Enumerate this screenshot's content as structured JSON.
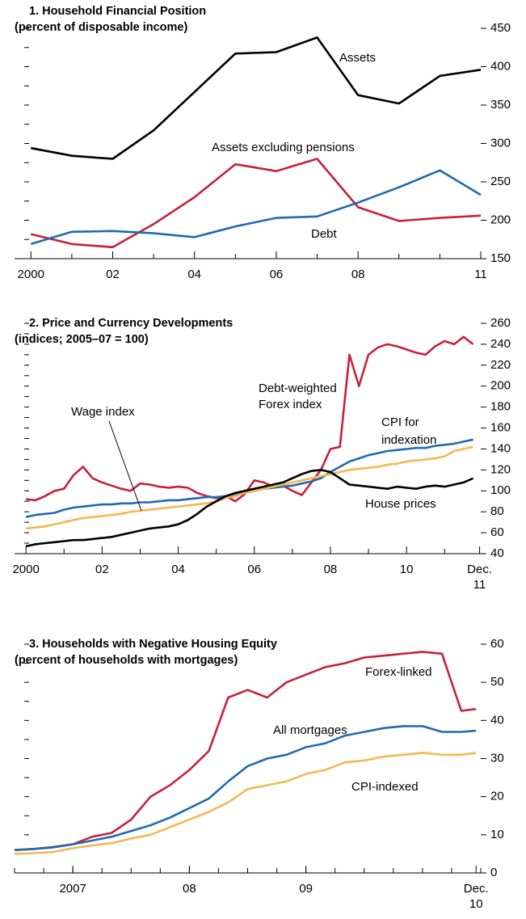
{
  "chart_data": [
    {
      "type": "line",
      "title": "1. Household Financial Position",
      "subtitle": "(percent of disposable income)",
      "x": [
        2000,
        2001,
        2002,
        2003,
        2004,
        2005,
        2006,
        2007,
        2008,
        2009,
        2010,
        2011
      ],
      "series": [
        {
          "name": "Assets",
          "color": "#000000",
          "values": [
            294,
            284,
            280,
            317,
            367,
            417,
            419,
            438,
            363,
            352,
            388,
            396
          ]
        },
        {
          "name": "Assets excluding pensions",
          "color": "#c8203c",
          "values": [
            182,
            169,
            165,
            195,
            230,
            273,
            264,
            280,
            217,
            199,
            203,
            206
          ]
        },
        {
          "name": "Debt",
          "color": "#1f6bb0",
          "values": [
            169,
            185,
            186,
            183,
            178,
            192,
            203,
            205,
            223,
            243,
            265,
            233
          ]
        }
      ],
      "xlim": [
        1999.6,
        2011
      ],
      "xticks": [
        {
          "value": 2000,
          "label": "2000"
        },
        {
          "value": 2002,
          "label": "02"
        },
        {
          "value": 2004,
          "label": "04"
        },
        {
          "value": 2006,
          "label": "06"
        },
        {
          "value": 2008,
          "label": "08"
        },
        {
          "value": 2011,
          "label": "11"
        }
      ],
      "xminor": [
        2001,
        2003,
        2005,
        2007,
        2009,
        2010
      ],
      "ylim": [
        150,
        450
      ],
      "yticks": [
        150,
        200,
        250,
        300,
        350,
        400,
        450
      ],
      "yminor": [
        175,
        225,
        275,
        325,
        375,
        425
      ]
    },
    {
      "type": "line",
      "title": "2. Price and Currency Developments",
      "subtitle": "(indices; 2005–07 = 100)",
      "x": [
        2000,
        2000.25,
        2000.5,
        2000.75,
        2001,
        2001.25,
        2001.5,
        2001.75,
        2002,
        2002.25,
        2002.5,
        2002.75,
        2003,
        2003.25,
        2003.5,
        2003.75,
        2004,
        2004.25,
        2004.5,
        2004.75,
        2005,
        2005.25,
        2005.5,
        2005.75,
        2006,
        2006.25,
        2006.5,
        2006.75,
        2007,
        2007.25,
        2007.5,
        2007.75,
        2008,
        2008.25,
        2008.5,
        2008.75,
        2009,
        2009.25,
        2009.5,
        2009.75,
        2010,
        2010.25,
        2010.5,
        2010.75,
        2011,
        2011.25,
        2011.5,
        2011.75
      ],
      "series": [
        {
          "name": "Debt-weighted Forex index",
          "color": "#c8203c",
          "values": [
            92,
            91,
            95,
            100,
            102,
            115,
            123,
            112,
            108,
            105,
            102,
            100,
            107,
            106,
            104,
            103,
            104,
            103,
            98,
            95,
            93,
            95,
            90,
            97,
            110,
            108,
            104,
            105,
            100,
            96,
            108,
            120,
            140,
            142,
            230,
            200,
            230,
            237,
            240,
            238,
            235,
            232,
            230,
            238,
            243,
            240,
            247,
            240
          ]
        },
        {
          "name": "CPI for indexation",
          "color": "#1f6bb0",
          "values": [
            75,
            77,
            78,
            79,
            82,
            84,
            85,
            86,
            87,
            87,
            88,
            88,
            89,
            89,
            90,
            91,
            91,
            92,
            93,
            94,
            94,
            95,
            96,
            98,
            100,
            102,
            103,
            104,
            105,
            107,
            109,
            112,
            118,
            123,
            128,
            131,
            134,
            136,
            138,
            139,
            140,
            141,
            141,
            143,
            144,
            145,
            147,
            149
          ]
        },
        {
          "name": "Wage index",
          "color": "#f5b850",
          "values": [
            64,
            65,
            66,
            68,
            70,
            72,
            74,
            75,
            76,
            77,
            78,
            80,
            81,
            82,
            83,
            84,
            85,
            86,
            87,
            88,
            90,
            93,
            95,
            98,
            100,
            102,
            104,
            106,
            108,
            110,
            112,
            114,
            116,
            118,
            120,
            121,
            122,
            123,
            125,
            126,
            128,
            129,
            130,
            131,
            133,
            138,
            140,
            142
          ]
        },
        {
          "name": "House prices",
          "color": "#000000",
          "values": [
            47,
            49,
            50,
            51,
            52,
            53,
            53,
            54,
            55,
            56,
            58,
            60,
            62,
            64,
            65,
            66,
            68,
            72,
            78,
            85,
            90,
            95,
            98,
            100,
            102,
            104,
            106,
            108,
            112,
            116,
            119,
            120,
            118,
            112,
            106,
            105,
            104,
            103,
            102,
            104,
            103,
            102,
            104,
            105,
            104,
            106,
            108,
            112
          ]
        }
      ],
      "annotations": [
        "Wage index",
        "Debt-weighted",
        "Forex index",
        "CPI for",
        "indexation",
        "House prices"
      ],
      "xlim": [
        1999.7,
        2011.95
      ],
      "xticks": [
        {
          "value": 2000,
          "label": "2000"
        },
        {
          "value": 2002,
          "label": "02"
        },
        {
          "value": 2004,
          "label": "04"
        },
        {
          "value": 2006,
          "label": "06"
        },
        {
          "value": 2008,
          "label": "08"
        },
        {
          "value": 2010,
          "label": "10"
        },
        {
          "value": 2011.92,
          "label": [
            "Dec.",
            "11"
          ]
        }
      ],
      "xminor": [
        2001,
        2003,
        2005,
        2007,
        2009,
        2011
      ],
      "ylim": [
        40,
        260
      ],
      "yticks": [
        40,
        60,
        80,
        100,
        120,
        140,
        160,
        180,
        200,
        220,
        240,
        260
      ],
      "yminor": [
        50,
        70,
        90,
        110,
        130,
        150,
        170,
        190,
        210,
        230,
        250
      ]
    },
    {
      "type": "line",
      "title": "3. Households with Negative Housing Equity",
      "subtitle": "(percent of households with mortgages)",
      "x": [
        2007,
        2007.167,
        2007.333,
        2007.5,
        2007.667,
        2007.833,
        2008,
        2008.167,
        2008.333,
        2008.5,
        2008.667,
        2008.833,
        2009,
        2009.167,
        2009.333,
        2009.5,
        2009.667,
        2009.833,
        2010,
        2010.167,
        2010.333,
        2010.5,
        2010.667,
        2010.833,
        2010.958
      ],
      "series": [
        {
          "name": "Forex-linked",
          "color": "#c8203c",
          "values": [
            6,
            6.3,
            6.8,
            7.5,
            9.5,
            10.5,
            14,
            20,
            23,
            27,
            32,
            46,
            48,
            46,
            50,
            52,
            54,
            55,
            56.5,
            57,
            57.5,
            58,
            57.5,
            42.5,
            43
          ]
        },
        {
          "name": "All mortgages",
          "color": "#1f6bb0",
          "values": [
            6,
            6.3,
            6.7,
            7.5,
            8.5,
            9.5,
            11,
            12.5,
            14.5,
            17,
            19.5,
            24,
            28,
            30,
            31,
            33,
            34,
            36,
            37,
            38,
            38.5,
            38.5,
            37,
            37,
            37.3
          ]
        },
        {
          "name": "CPI-indexed",
          "color": "#f5b850",
          "values": [
            5,
            5.2,
            5.5,
            6.5,
            7.2,
            7.8,
            9,
            10,
            12,
            14,
            16,
            18.5,
            22,
            23,
            24,
            26,
            27,
            29,
            29.5,
            30.5,
            31,
            31.5,
            31,
            31,
            31.5
          ]
        }
      ],
      "xlim": [
        2007,
        2011
      ],
      "xticks": [
        {
          "value": 2007.5,
          "label": "2007"
        },
        {
          "value": 2008.5,
          "label": "08"
        },
        {
          "value": 2009.5,
          "label": "09"
        },
        {
          "value": 2010.96,
          "label": [
            "Dec.",
            "10"
          ]
        }
      ],
      "xminor": [
        2007,
        2007.25,
        2007.5,
        2007.75,
        2008,
        2008.25,
        2008.5,
        2008.75,
        2009,
        2009.25,
        2009.5,
        2009.75,
        2010,
        2010.25,
        2010.5,
        2010.75,
        2011
      ],
      "ylim": [
        0,
        60
      ],
      "yticks": [
        0,
        10,
        20,
        30,
        40,
        50,
        60
      ],
      "yminor": [
        5,
        15,
        25,
        35,
        45,
        55
      ]
    }
  ]
}
